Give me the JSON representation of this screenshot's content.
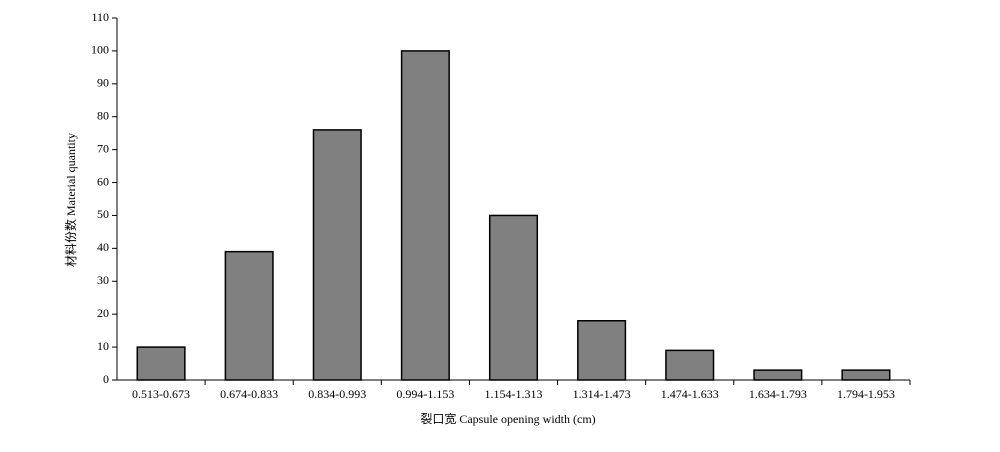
{
  "chart_data": {
    "type": "bar",
    "xlabel": "裂口宽 Capsule opening width (cm)",
    "ylabel": "材料份数 Material quantity",
    "categories": [
      "0.513-0.673",
      "0.674-0.833",
      "0.834-0.993",
      "0.994-1.153",
      "1.154-1.313",
      "1.314-1.473",
      "1.474-1.633",
      "1.634-1.793",
      "1.794-1.953"
    ],
    "values": [
      10,
      39,
      76,
      100,
      50,
      18,
      9,
      3,
      3
    ],
    "color": "#808080",
    "ylim": [
      0,
      110
    ],
    "yticks": [
      0,
      10,
      20,
      30,
      40,
      50,
      60,
      70,
      80,
      90,
      100,
      110
    ],
    "grid": false
  }
}
